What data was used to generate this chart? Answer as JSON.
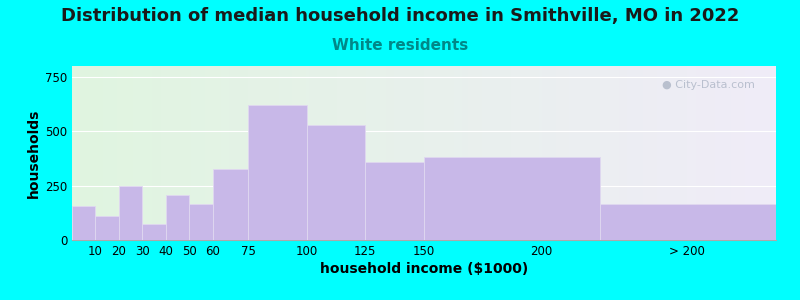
{
  "title": "Distribution of median household income in Smithville, MO in 2022",
  "subtitle": "White residents",
  "xlabel": "household income ($1000)",
  "ylabel": "households",
  "background_color": "#00FFFF",
  "bar_color": "#c8b8e8",
  "bar_edge_color": "#e0d8f0",
  "categories": [
    "10",
    "20",
    "30",
    "40",
    "50",
    "60",
    "75",
    "100",
    "125",
    "150",
    "200",
    "> 200"
  ],
  "values": [
    155,
    110,
    250,
    75,
    205,
    165,
    325,
    620,
    530,
    360,
    380,
    165
  ],
  "left_edges": [
    0,
    10,
    20,
    30,
    40,
    50,
    60,
    75,
    100,
    125,
    150,
    225
  ],
  "widths": [
    10,
    10,
    10,
    10,
    10,
    10,
    15,
    25,
    25,
    25,
    75,
    75
  ],
  "xtick_positions": [
    10,
    20,
    30,
    40,
    50,
    60,
    75,
    100,
    125,
    150,
    200,
    262
  ],
  "xtick_labels": [
    "10",
    "20",
    "30",
    "40",
    "50",
    "60",
    "75",
    "100",
    "125",
    "150",
    "200",
    "> 200"
  ],
  "yticks": [
    0,
    250,
    500,
    750
  ],
  "ylim": [
    0,
    800
  ],
  "xlim": [
    0,
    300
  ],
  "title_fontsize": 13,
  "subtitle_fontsize": 11,
  "subtitle_color": "#008888",
  "axis_label_fontsize": 10,
  "tick_fontsize": 8.5,
  "watermark_text": "City-Data.com",
  "watermark_color": "#b0b8c8"
}
